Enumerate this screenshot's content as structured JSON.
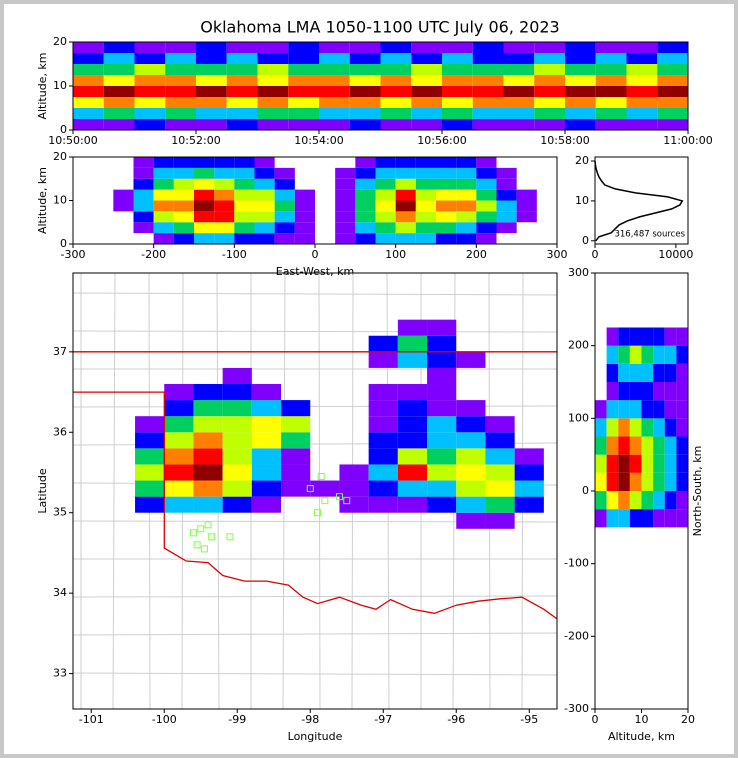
{
  "colormap": [
    "#8000ff",
    "#0000ff",
    "#00c0ff",
    "#00d060",
    "#c0ff00",
    "#ffff00",
    "#ff8000",
    "#ff0000",
    "#900000"
  ],
  "chart_data": [
    {
      "type": "heatmap",
      "title": "Oklahoma LMA 1050-1100 UTC July 06, 2023",
      "y_label": "Altitude, km",
      "xticks": [
        "10:50:00",
        "10:52:00",
        "10:54:00",
        "10:56:00",
        "10:58:00",
        "11:00:00"
      ],
      "ylim": [
        0,
        20
      ],
      "yticks": [
        0,
        10,
        20
      ],
      "y_bins": [
        0,
        2.5,
        5,
        7.5,
        10,
        12.5,
        15,
        17.5,
        20
      ],
      "density": [
        [
          1,
          1,
          2,
          1,
          1,
          2,
          1,
          1,
          1,
          2,
          1,
          1,
          2,
          1,
          1,
          1,
          2,
          1,
          1,
          1
        ],
        [
          3,
          4,
          3,
          4,
          3,
          3,
          4,
          4,
          3,
          3,
          4,
          3,
          4,
          3,
          3,
          4,
          3,
          4,
          3,
          4
        ],
        [
          6,
          7,
          6,
          7,
          7,
          6,
          7,
          6,
          7,
          7,
          6,
          7,
          6,
          7,
          7,
          6,
          7,
          6,
          7,
          7
        ],
        [
          8,
          9,
          8,
          8,
          9,
          8,
          9,
          8,
          8,
          9,
          8,
          9,
          8,
          8,
          9,
          8,
          9,
          9,
          8,
          9
        ],
        [
          7,
          6,
          7,
          7,
          6,
          7,
          6,
          7,
          7,
          6,
          7,
          6,
          7,
          7,
          6,
          7,
          6,
          7,
          6,
          7
        ],
        [
          4,
          4,
          5,
          4,
          4,
          4,
          5,
          4,
          4,
          4,
          4,
          5,
          4,
          4,
          4,
          5,
          4,
          4,
          5,
          4
        ],
        [
          2,
          3,
          2,
          3,
          2,
          3,
          2,
          2,
          3,
          2,
          3,
          2,
          3,
          2,
          2,
          3,
          2,
          3,
          2,
          3
        ],
        [
          1,
          2,
          1,
          1,
          2,
          1,
          1,
          2,
          1,
          1,
          2,
          1,
          1,
          2,
          1,
          1,
          2,
          1,
          1,
          2
        ]
      ]
    },
    {
      "type": "heatmap",
      "x_label": "East-West, km",
      "y_label": "Altitude, km",
      "xlim": [
        -300,
        300
      ],
      "xticks": [
        -300,
        -200,
        -100,
        0,
        100,
        200,
        300
      ],
      "ylim": [
        0,
        20
      ],
      "yticks": [
        0,
        10,
        20
      ],
      "x_bins": [
        -300,
        -275,
        -250,
        -225,
        -200,
        -175,
        -150,
        -125,
        -100,
        -75,
        -50,
        -25,
        0,
        25,
        50,
        75,
        100,
        125,
        150,
        175,
        200,
        225,
        250,
        275,
        300
      ],
      "y_bins": [
        0,
        2.5,
        5,
        7.5,
        10,
        12.5,
        15,
        17.5,
        20
      ],
      "density": [
        [
          0,
          0,
          0,
          0,
          1,
          2,
          3,
          3,
          2,
          2,
          1,
          1,
          0,
          1,
          2,
          3,
          3,
          3,
          2,
          2,
          1,
          0,
          0,
          0
        ],
        [
          0,
          0,
          0,
          1,
          3,
          4,
          6,
          6,
          4,
          3,
          2,
          1,
          0,
          1,
          3,
          4,
          5,
          4,
          4,
          3,
          2,
          1,
          0,
          0
        ],
        [
          0,
          0,
          0,
          2,
          5,
          6,
          8,
          8,
          5,
          5,
          3,
          1,
          0,
          1,
          4,
          5,
          7,
          5,
          6,
          5,
          4,
          3,
          1,
          0
        ],
        [
          0,
          0,
          1,
          3,
          7,
          7,
          9,
          8,
          6,
          6,
          4,
          1,
          0,
          1,
          4,
          6,
          9,
          6,
          7,
          7,
          5,
          3,
          1,
          0
        ],
        [
          0,
          0,
          1,
          3,
          6,
          6,
          8,
          7,
          5,
          5,
          3,
          1,
          0,
          1,
          4,
          5,
          8,
          5,
          6,
          6,
          4,
          2,
          1,
          0
        ],
        [
          0,
          0,
          0,
          2,
          4,
          5,
          6,
          5,
          4,
          3,
          2,
          0,
          0,
          1,
          3,
          4,
          5,
          4,
          4,
          4,
          3,
          1,
          0,
          0
        ],
        [
          0,
          0,
          0,
          1,
          3,
          3,
          4,
          3,
          3,
          2,
          1,
          0,
          0,
          1,
          2,
          3,
          3,
          3,
          3,
          3,
          2,
          1,
          0,
          0
        ],
        [
          0,
          0,
          0,
          1,
          2,
          2,
          2,
          2,
          2,
          1,
          0,
          0,
          0,
          0,
          1,
          2,
          2,
          2,
          2,
          2,
          1,
          0,
          0,
          0
        ]
      ]
    },
    {
      "type": "line",
      "annotation": "316,487 sources",
      "xlim": [
        0,
        11500
      ],
      "xticks": [
        0,
        10000
      ],
      "ylim": [
        -0.8,
        21
      ],
      "yticks": [
        0,
        10,
        20
      ],
      "altitudes": [
        0,
        1,
        2,
        3,
        4,
        5,
        6,
        7,
        8,
        9,
        10,
        11,
        12,
        13,
        14,
        15,
        16,
        17,
        18,
        19,
        20
      ],
      "values": [
        100,
        500,
        2000,
        2500,
        3000,
        4000,
        5500,
        7500,
        9500,
        10500,
        10800,
        9000,
        5000,
        2500,
        1200,
        800,
        500,
        300,
        150,
        50,
        0
      ]
    },
    {
      "type": "map",
      "x_label": "Longitude",
      "y_label": "Latitude",
      "xlim": [
        -101.25,
        -94.62
      ],
      "xticks": [
        -101,
        -100,
        -99,
        -98,
        -97,
        -96,
        -95
      ],
      "ylim": [
        32.56,
        37.98
      ],
      "yticks": [
        33,
        34,
        35,
        36,
        37
      ],
      "x_bins": [
        -101.2,
        -100.8,
        -100.4,
        -100.0,
        -99.6,
        -99.2,
        -98.8,
        -98.4,
        -98.0,
        -97.6,
        -97.2,
        -96.8,
        -96.4,
        -96.0,
        -95.6,
        -95.2,
        -94.8
      ],
      "y_bins": [
        34.8,
        35.0,
        35.2,
        35.4,
        35.6,
        35.8,
        36.0,
        36.2,
        36.4,
        36.6,
        36.8,
        37.0,
        37.2,
        37.4
      ],
      "density": [
        [
          0,
          0,
          0,
          0,
          0,
          0,
          0,
          0,
          0,
          0,
          0,
          0,
          0,
          1,
          1,
          0
        ],
        [
          0,
          0,
          2,
          3,
          3,
          2,
          1,
          0,
          0,
          1,
          1,
          1,
          2,
          3,
          4,
          2
        ],
        [
          0,
          0,
          4,
          6,
          7,
          5,
          2,
          1,
          1,
          1,
          2,
          3,
          3,
          5,
          6,
          3
        ],
        [
          0,
          0,
          5,
          8,
          9,
          6,
          3,
          1,
          0,
          1,
          3,
          8,
          5,
          6,
          5,
          2
        ],
        [
          0,
          0,
          4,
          7,
          8,
          5,
          3,
          1,
          0,
          0,
          2,
          5,
          4,
          5,
          3,
          1
        ],
        [
          0,
          0,
          2,
          5,
          7,
          5,
          6,
          4,
          0,
          0,
          2,
          2,
          3,
          3,
          2,
          0
        ],
        [
          0,
          0,
          1,
          4,
          5,
          5,
          6,
          5,
          0,
          0,
          1,
          2,
          3,
          2,
          1,
          0
        ],
        [
          0,
          0,
          0,
          2,
          4,
          4,
          3,
          2,
          0,
          0,
          1,
          2,
          1,
          1,
          0,
          0
        ],
        [
          0,
          0,
          0,
          1,
          2,
          2,
          1,
          0,
          0,
          0,
          1,
          1,
          1,
          0,
          0,
          0
        ],
        [
          0,
          0,
          0,
          0,
          0,
          1,
          0,
          0,
          0,
          0,
          0,
          0,
          1,
          0,
          0,
          0
        ],
        [
          0,
          0,
          0,
          0,
          0,
          0,
          0,
          0,
          0,
          0,
          1,
          3,
          2,
          1,
          0,
          0
        ],
        [
          0,
          0,
          0,
          0,
          0,
          0,
          0,
          0,
          0,
          0,
          2,
          4,
          2,
          0,
          0,
          0
        ],
        [
          0,
          0,
          0,
          0,
          0,
          0,
          0,
          0,
          0,
          0,
          0,
          1,
          1,
          0,
          0,
          0
        ]
      ],
      "stations": {
        "color": "#80ff40",
        "lon": [
          -99.5,
          -99.4,
          -99.6,
          -99.35,
          -99.1,
          -99.55,
          -99.45,
          -98.0,
          -97.85,
          -97.8,
          -97.9,
          -97.6,
          -97.5
        ],
        "lat": [
          34.8,
          34.85,
          34.75,
          34.7,
          34.7,
          34.6,
          34.55,
          35.3,
          35.45,
          35.15,
          35.0,
          35.2,
          35.15
        ]
      }
    },
    {
      "type": "heatmap",
      "x_label": "Altitude, km",
      "y_label": "North-South, km",
      "y_label_side": "right",
      "xlim": [
        0,
        20
      ],
      "xticks": [
        0,
        10,
        20
      ],
      "ylim": [
        -300,
        300
      ],
      "yticks": [
        -300,
        -200,
        -100,
        0,
        100,
        200,
        300
      ],
      "x_bins": [
        0,
        2.5,
        5,
        7.5,
        10,
        12.5,
        15,
        17.5,
        20
      ],
      "y_bins": [
        -50,
        -25,
        0,
        25,
        50,
        75,
        100,
        125,
        150,
        175,
        200,
        225
      ],
      "density": [
        [
          1,
          3,
          3,
          2,
          2,
          1,
          1,
          1
        ],
        [
          4,
          6,
          7,
          5,
          4,
          3,
          2,
          1
        ],
        [
          6,
          8,
          9,
          7,
          5,
          4,
          3,
          2
        ],
        [
          5,
          8,
          9,
          8,
          5,
          4,
          3,
          2
        ],
        [
          4,
          7,
          8,
          7,
          5,
          4,
          3,
          2
        ],
        [
          3,
          5,
          7,
          5,
          4,
          3,
          2,
          1
        ],
        [
          1,
          3,
          3,
          3,
          2,
          2,
          1,
          1
        ],
        [
          0,
          1,
          2,
          2,
          2,
          1,
          1,
          1
        ],
        [
          0,
          2,
          3,
          3,
          3,
          2,
          2,
          1
        ],
        [
          0,
          3,
          4,
          5,
          4,
          3,
          3,
          2
        ],
        [
          0,
          1,
          2,
          2,
          2,
          2,
          1,
          1
        ]
      ]
    }
  ]
}
